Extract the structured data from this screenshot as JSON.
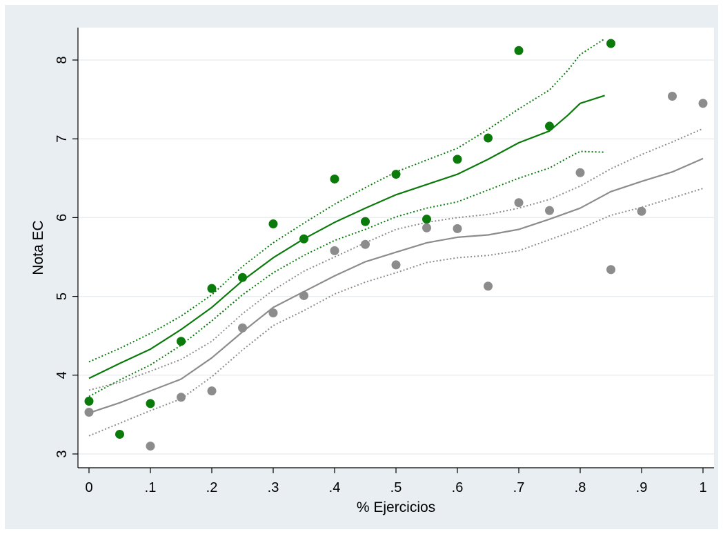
{
  "chart_data": {
    "type": "scatter",
    "xlabel": "% Ejercicios",
    "ylabel": "Nota EC",
    "xlim": [
      0,
      1
    ],
    "ylim": [
      3,
      8.3
    ],
    "x_ticks": [
      0,
      0.1,
      0.2,
      0.3,
      0.4,
      0.5,
      0.6,
      0.7,
      0.8,
      0.9,
      1
    ],
    "x_tick_labels": [
      "0",
      ".1",
      ".2",
      ".3",
      ".4",
      ".5",
      ".6",
      ".7",
      ".8",
      ".9",
      "1"
    ],
    "y_ticks": [
      3,
      4,
      5,
      6,
      7,
      8
    ],
    "y_tick_labels": [
      "3",
      "4",
      "5",
      "6",
      "7",
      "8"
    ],
    "grid": true,
    "colors": {
      "outer_background": "#e8eef2",
      "plot_background": "#ffffff",
      "grid": "#e8eef2",
      "green": "#0a7a0a",
      "gray": "#8c8c8c"
    },
    "series": [
      {
        "kind": "points",
        "color": "#0a7a0a",
        "x": [
          0,
          0.05,
          0.1,
          0.15,
          0.2,
          0.25,
          0.3,
          0.35,
          0.4,
          0.45,
          0.5,
          0.55,
          0.6,
          0.65,
          0.7,
          0.75,
          0.85
        ],
        "y": [
          3.67,
          3.25,
          3.64,
          4.43,
          5.1,
          5.24,
          5.92,
          5.73,
          6.49,
          5.95,
          6.55,
          5.98,
          6.74,
          7.01,
          8.12,
          7.16,
          8.21
        ]
      },
      {
        "kind": "points",
        "color": "#8c8c8c",
        "x": [
          0,
          0.1,
          0.15,
          0.2,
          0.25,
          0.3,
          0.35,
          0.4,
          0.45,
          0.5,
          0.55,
          0.6,
          0.65,
          0.7,
          0.75,
          0.8,
          0.85,
          0.9,
          0.95,
          1
        ],
        "y": [
          3.53,
          3.1,
          3.72,
          3.8,
          4.6,
          4.79,
          5.01,
          5.58,
          5.66,
          5.4,
          5.87,
          5.86,
          5.13,
          6.19,
          6.09,
          6.57,
          5.34,
          6.08,
          7.54,
          7.45
        ]
      },
      {
        "kind": "line",
        "style": "solid",
        "color": "#0a7a0a",
        "x": [
          0,
          0.05,
          0.1,
          0.15,
          0.2,
          0.25,
          0.3,
          0.35,
          0.4,
          0.45,
          0.5,
          0.55,
          0.6,
          0.65,
          0.7,
          0.75,
          0.78,
          0.8,
          0.84
        ],
        "y": [
          3.96,
          4.15,
          4.33,
          4.58,
          4.86,
          5.2,
          5.49,
          5.73,
          5.94,
          6.12,
          6.29,
          6.42,
          6.55,
          6.74,
          6.95,
          7.1,
          7.3,
          7.45,
          7.55
        ]
      },
      {
        "kind": "line",
        "style": "dotted",
        "color": "#0a7a0a",
        "x": [
          0,
          0.05,
          0.1,
          0.15,
          0.2,
          0.25,
          0.3,
          0.35,
          0.4,
          0.45,
          0.5,
          0.55,
          0.6,
          0.65,
          0.7,
          0.75,
          0.78,
          0.8,
          0.84
        ],
        "y": [
          4.17,
          4.34,
          4.53,
          4.75,
          5.02,
          5.38,
          5.68,
          5.93,
          6.17,
          6.38,
          6.58,
          6.73,
          6.88,
          7.12,
          7.38,
          7.62,
          7.87,
          8.07,
          8.27
        ]
      },
      {
        "kind": "line",
        "style": "dotted",
        "color": "#0a7a0a",
        "x": [
          0,
          0.05,
          0.1,
          0.15,
          0.2,
          0.25,
          0.3,
          0.35,
          0.4,
          0.45,
          0.5,
          0.55,
          0.6,
          0.65,
          0.7,
          0.75,
          0.78,
          0.8,
          0.84
        ],
        "y": [
          3.73,
          3.94,
          4.13,
          4.38,
          4.69,
          5.02,
          5.3,
          5.52,
          5.71,
          5.85,
          6.01,
          6.12,
          6.2,
          6.35,
          6.5,
          6.63,
          6.76,
          6.84,
          6.83
        ]
      },
      {
        "kind": "line",
        "style": "solid",
        "color": "#8c8c8c",
        "x": [
          0,
          0.05,
          0.1,
          0.15,
          0.2,
          0.25,
          0.3,
          0.35,
          0.4,
          0.45,
          0.5,
          0.55,
          0.6,
          0.65,
          0.7,
          0.75,
          0.8,
          0.85,
          0.9,
          0.95,
          1
        ],
        "y": [
          3.52,
          3.65,
          3.8,
          3.95,
          4.22,
          4.55,
          4.86,
          5.06,
          5.26,
          5.44,
          5.56,
          5.68,
          5.75,
          5.78,
          5.85,
          5.98,
          6.12,
          6.33,
          6.46,
          6.58,
          6.75
        ]
      },
      {
        "kind": "line",
        "style": "dotted",
        "color": "#8c8c8c",
        "x": [
          0,
          0.05,
          0.1,
          0.15,
          0.2,
          0.25,
          0.3,
          0.35,
          0.4,
          0.45,
          0.5,
          0.55,
          0.6,
          0.65,
          0.7,
          0.75,
          0.8,
          0.85,
          0.9,
          0.95,
          1
        ],
        "y": [
          3.81,
          3.91,
          4.05,
          4.2,
          4.43,
          4.78,
          5.08,
          5.32,
          5.5,
          5.68,
          5.85,
          5.94,
          6.0,
          6.04,
          6.12,
          6.23,
          6.4,
          6.62,
          6.8,
          6.96,
          7.13
        ]
      },
      {
        "kind": "line",
        "style": "dotted",
        "color": "#8c8c8c",
        "x": [
          0,
          0.05,
          0.1,
          0.15,
          0.2,
          0.25,
          0.3,
          0.35,
          0.4,
          0.45,
          0.5,
          0.55,
          0.6,
          0.65,
          0.7,
          0.75,
          0.8,
          0.85,
          0.9,
          0.95,
          1
        ],
        "y": [
          3.23,
          3.39,
          3.55,
          3.7,
          3.98,
          4.32,
          4.63,
          4.82,
          5.03,
          5.18,
          5.3,
          5.43,
          5.49,
          5.52,
          5.58,
          5.72,
          5.86,
          6.03,
          6.13,
          6.25,
          6.37
        ]
      }
    ]
  }
}
